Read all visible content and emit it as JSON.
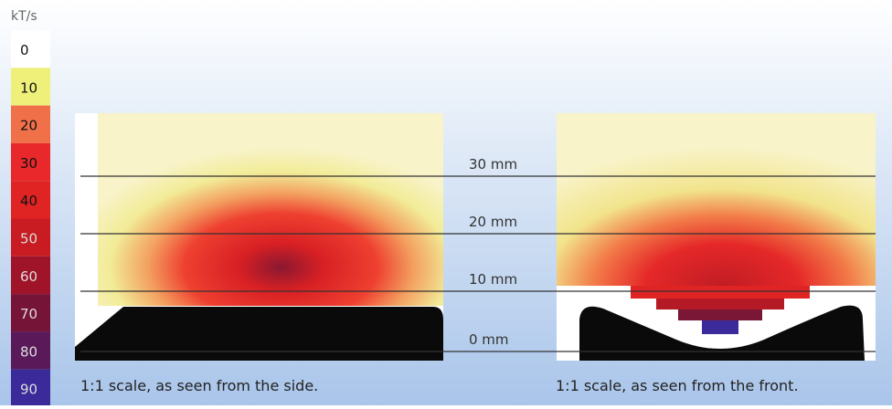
{
  "legend": {
    "unit": "kT/s",
    "levels": [
      {
        "label": "0",
        "color": "#ffffff"
      },
      {
        "label": "10",
        "color": "#eef07a"
      },
      {
        "label": "20",
        "color": "#f0704a"
      },
      {
        "label": "30",
        "color": "#e8282a"
      },
      {
        "label": "40",
        "color": "#e02424"
      },
      {
        "label": "50",
        "color": "#c81c22"
      },
      {
        "label": "60",
        "color": "#a0142a"
      },
      {
        "label": "70",
        "color": "#761438"
      },
      {
        "label": "80",
        "color": "#5a1a5a"
      },
      {
        "label": "90",
        "color": "#3a2a9a"
      }
    ]
  },
  "heights": [
    "30 mm",
    "20 mm",
    "10 mm",
    "0 mm"
  ],
  "captions": [
    "1:1 scale, as seen from the side.",
    "1:1 scale, as seen from the front."
  ]
}
